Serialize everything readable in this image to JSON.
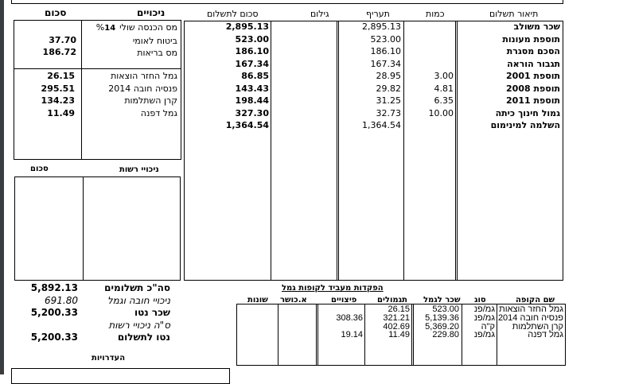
{
  "payments": {
    "headers": {
      "description": "תיאור תשלום",
      "quantity": "כמות",
      "rate": "תעריף",
      "gilum": "גילום",
      "amount": "סכום לתשלום"
    },
    "rows": [
      {
        "description": "שכר משולב",
        "quantity": "",
        "rate": "2,895.13",
        "amount": "2,895.13"
      },
      {
        "description": "תוספת מעונות",
        "quantity": "",
        "rate": "523.00",
        "amount": "523.00"
      },
      {
        "description": "הסכם מסגרת",
        "quantity": "",
        "rate": "186.10",
        "amount": "186.10"
      },
      {
        "description": "תגבור הוראה",
        "quantity": "",
        "rate": "167.34",
        "amount": "167.34"
      },
      {
        "description": "תוספת 2001",
        "quantity": "3.00",
        "rate": "28.95",
        "amount": "86.85"
      },
      {
        "description": "תוספת 2008",
        "quantity": "4.81",
        "rate": "29.82",
        "amount": "143.43"
      },
      {
        "description": "תוספת 2011",
        "quantity": "6.35",
        "rate": "31.25",
        "amount": "198.44"
      },
      {
        "description": "גמול חינוך כיתה",
        "quantity": "10.00",
        "rate": "32.73",
        "amount": "327.30"
      },
      {
        "description": "השלמה למינימום",
        "quantity": "",
        "rate": "1,364.54",
        "amount": "1,364.54"
      }
    ]
  },
  "deductions": {
    "header": "ניכויים",
    "sum_header": "סכום",
    "mandatory": [
      {
        "label": "מס הכנסה שולי%",
        "extra": "14",
        "value": ""
      },
      {
        "label": "ביטוח לאומי",
        "value": "37.70"
      },
      {
        "label": "מס בריאות",
        "value": "186.72"
      }
    ],
    "funds": [
      {
        "label": "גמל החזר הוצאות",
        "value": "26.15"
      },
      {
        "label": "פנסיה חובה 2014",
        "value": "295.51"
      },
      {
        "label": "קרן השתלמות",
        "value": "134.23"
      },
      {
        "label": "גמל דפנה",
        "value": "11.49"
      }
    ]
  },
  "voluntary": {
    "header": "ניכויי רשות",
    "sum_header": "סכום"
  },
  "totals": [
    {
      "label": "סה\"כ תשלומים",
      "value": "5,892.13",
      "style": "bold"
    },
    {
      "label": "ניכויי חובה וגמל",
      "value": "691.80",
      "style": "italic"
    },
    {
      "label": "שכר נטו",
      "value": "5,200.33",
      "style": "bold"
    },
    {
      "label": "ס\"ה ניכויי רשות",
      "value": "",
      "style": "italic"
    },
    {
      "label": "נטו לתשלום",
      "value": "5,200.33",
      "style": "bold"
    }
  ],
  "absences_label": "העדרויות",
  "provident": {
    "title": "הפקדות מעביד לקופות גמל",
    "headers": {
      "fund": "שם הקופה",
      "type": "סוג",
      "salary": "שכר לגמל",
      "contrib": "תגמולים",
      "severance": "פיצויים",
      "capacity": "א.כושר",
      "misc": "שונות"
    },
    "rows": [
      {
        "fund": "גמל החזר הוצאות",
        "type": "גמ/פנ",
        "salary": "523.00",
        "contrib": "26.15",
        "severance": ""
      },
      {
        "fund": "פנסיה חובה 2014",
        "type": "גמ/פנ",
        "salary": "5,139.36",
        "contrib": "321.21",
        "severance": "308.36"
      },
      {
        "fund": "קרן השתלמות",
        "type": "ק\"ה",
        "salary": "5,369.20",
        "contrib": "402.69",
        "severance": ""
      },
      {
        "fund": "גמל דפנה",
        "type": "גמ/פנ",
        "salary": "229.80",
        "contrib": "11.49",
        "severance": "19.14"
      }
    ]
  }
}
